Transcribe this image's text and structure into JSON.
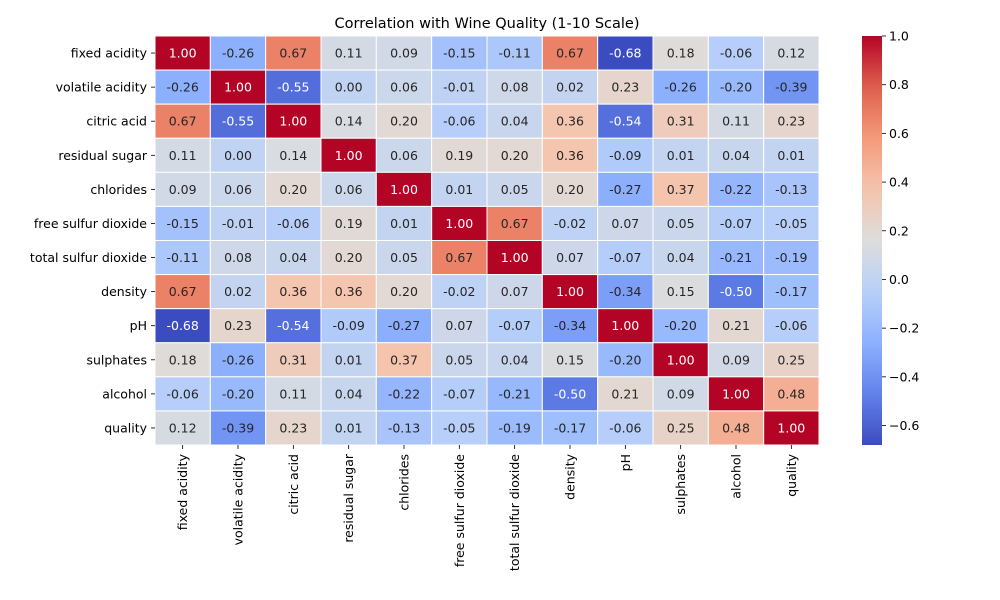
{
  "chart_data": {
    "type": "heatmap",
    "title": "Correlation with Wine Quality (1-10 Scale)",
    "xlabel": "",
    "ylabel": "",
    "labels": [
      "fixed acidity",
      "volatile acidity",
      "citric acid",
      "residual sugar",
      "chlorides",
      "free sulfur dioxide",
      "total sulfur dioxide",
      "density",
      "pH",
      "sulphates",
      "alcohol",
      "quality"
    ],
    "matrix": [
      [
        1.0,
        -0.26,
        0.67,
        0.11,
        0.09,
        -0.15,
        -0.11,
        0.67,
        -0.68,
        0.18,
        -0.06,
        0.12
      ],
      [
        -0.26,
        1.0,
        -0.55,
        0.0,
        0.06,
        -0.01,
        0.08,
        0.02,
        0.23,
        -0.26,
        -0.2,
        -0.39
      ],
      [
        0.67,
        -0.55,
        1.0,
        0.14,
        0.2,
        -0.06,
        0.04,
        0.36,
        -0.54,
        0.31,
        0.11,
        0.23
      ],
      [
        0.11,
        0.0,
        0.14,
        1.0,
        0.06,
        0.19,
        0.2,
        0.36,
        -0.09,
        0.01,
        0.04,
        0.01
      ],
      [
        0.09,
        0.06,
        0.2,
        0.06,
        1.0,
        0.01,
        0.05,
        0.2,
        -0.27,
        0.37,
        -0.22,
        -0.13
      ],
      [
        -0.15,
        -0.01,
        -0.06,
        0.19,
        0.01,
        1.0,
        0.67,
        -0.02,
        0.07,
        0.05,
        -0.07,
        -0.05
      ],
      [
        -0.11,
        0.08,
        0.04,
        0.2,
        0.05,
        0.67,
        1.0,
        0.07,
        -0.07,
        0.04,
        -0.21,
        -0.19
      ],
      [
        0.67,
        0.02,
        0.36,
        0.36,
        0.2,
        -0.02,
        0.07,
        1.0,
        -0.34,
        0.15,
        -0.5,
        -0.17
      ],
      [
        -0.68,
        0.23,
        -0.54,
        -0.09,
        -0.27,
        0.07,
        -0.07,
        -0.34,
        1.0,
        -0.2,
        0.21,
        -0.06
      ],
      [
        0.18,
        -0.26,
        0.31,
        0.01,
        0.37,
        0.05,
        0.04,
        0.15,
        -0.2,
        1.0,
        0.09,
        0.25
      ],
      [
        -0.06,
        -0.2,
        0.11,
        0.04,
        -0.22,
        -0.07,
        -0.21,
        -0.5,
        0.21,
        0.09,
        1.0,
        0.48
      ],
      [
        0.12,
        -0.39,
        0.23,
        0.01,
        -0.13,
        -0.05,
        -0.19,
        -0.17,
        -0.06,
        0.25,
        0.48,
        1.0
      ]
    ],
    "vmin": -0.68,
    "vmax": 1.0,
    "colormap": "coolwarm",
    "colorbar_ticks": [
      1.0,
      0.8,
      0.6,
      0.4,
      0.2,
      0.0,
      -0.2,
      -0.4,
      -0.6
    ],
    "colorbar_tick_labels": [
      "1.0",
      "0.8",
      "0.6",
      "0.4",
      "0.2",
      "0.0",
      "−0.2",
      "−0.4",
      "−0.6"
    ],
    "annotate": true,
    "grid": false,
    "legend": "colorbar-right"
  }
}
